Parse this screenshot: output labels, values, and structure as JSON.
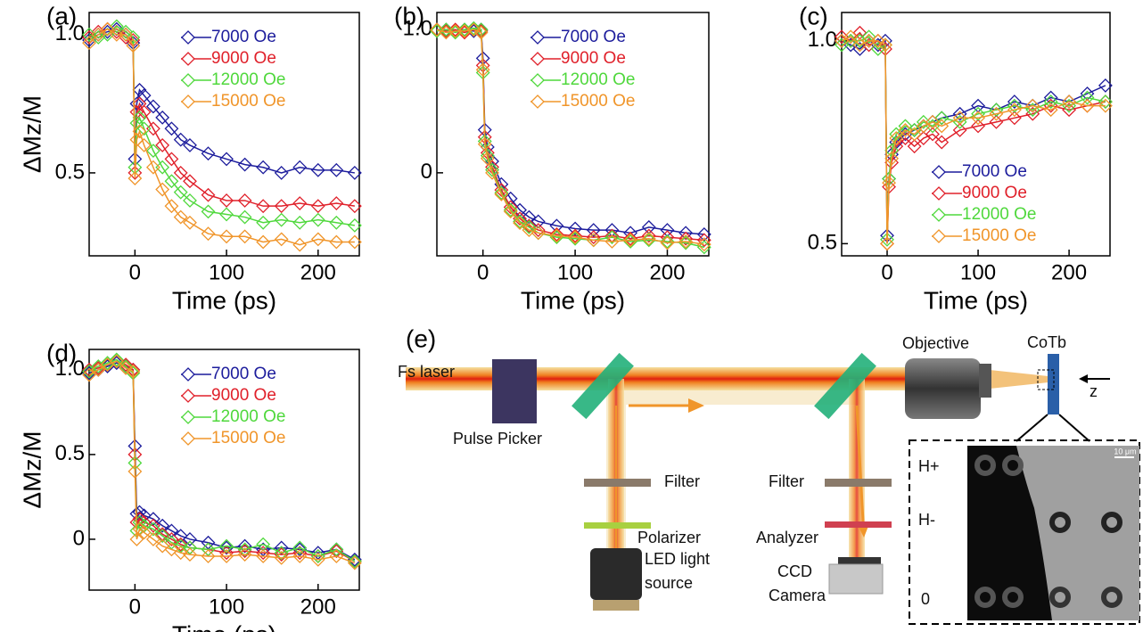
{
  "chart_data": [
    {
      "type": "line",
      "panel": "(a)",
      "xlabel": "Time (ps)",
      "ylabel": "ΔMz/M",
      "legend": "upper right",
      "x": [
        -50,
        -40,
        -30,
        -20,
        -10,
        -2,
        0,
        2,
        5,
        10,
        20,
        30,
        40,
        50,
        60,
        80,
        100,
        120,
        140,
        160,
        180,
        200,
        220,
        240
      ],
      "xlim": [
        -50,
        245
      ],
      "xticks": [
        0,
        100,
        200
      ],
      "ylim": [
        0.2,
        1.08
      ],
      "yticks": [
        0.5,
        {
          "value": 1,
          "label": "1.0"
        }
      ],
      "series": [
        {
          "name": "7000 Oe",
          "color": "#1c1c9c",
          "values": [
            0.98,
            1.0,
            1.01,
            1.02,
            1.0,
            0.97,
            0.55,
            0.75,
            0.8,
            0.78,
            0.74,
            0.7,
            0.66,
            0.62,
            0.6,
            0.57,
            0.55,
            0.53,
            0.52,
            0.5,
            0.52,
            0.51,
            0.51,
            0.5
          ]
        },
        {
          "name": "9000 Oe",
          "color": "#e0202a",
          "values": [
            0.99,
            1.01,
            1.02,
            1.01,
            0.99,
            0.98,
            0.5,
            0.72,
            0.75,
            0.72,
            0.66,
            0.6,
            0.55,
            0.5,
            0.47,
            0.42,
            0.4,
            0.4,
            0.38,
            0.38,
            0.39,
            0.38,
            0.39,
            0.38
          ]
        },
        {
          "name": "12000 Oe",
          "color": "#4fd83c",
          "values": [
            1.0,
            0.99,
            1.0,
            1.03,
            1.01,
            0.99,
            0.52,
            0.68,
            0.7,
            0.66,
            0.58,
            0.52,
            0.47,
            0.43,
            0.4,
            0.36,
            0.35,
            0.34,
            0.32,
            0.33,
            0.32,
            0.33,
            0.32,
            0.31
          ]
        },
        {
          "name": "15000 Oe",
          "color": "#f0952a",
          "values": [
            0.97,
            1.0,
            1.02,
            1.0,
            1.0,
            0.96,
            0.48,
            0.62,
            0.65,
            0.6,
            0.52,
            0.44,
            0.38,
            0.34,
            0.32,
            0.28,
            0.27,
            0.27,
            0.25,
            0.26,
            0.24,
            0.26,
            0.25,
            0.25
          ]
        }
      ]
    },
    {
      "type": "line",
      "panel": "(b)",
      "xlabel": "Time (ps)",
      "legend": "upper right",
      "x": [
        -50,
        -40,
        -30,
        -20,
        -10,
        -2,
        0,
        2,
        5,
        10,
        20,
        30,
        40,
        50,
        60,
        80,
        100,
        120,
        140,
        160,
        180,
        200,
        220,
        240
      ],
      "xlim": [
        -50,
        245
      ],
      "xticks": [
        0,
        100,
        200
      ],
      "ylim": [
        -0.58,
        1.12
      ],
      "yticks": [
        0,
        {
          "value": 1,
          "label": "1.0"
        }
      ],
      "series": [
        {
          "name": "7000 Oe",
          "color": "#1c1c9c",
          "values": [
            1.0,
            1.0,
            0.99,
            1.0,
            0.99,
            1.0,
            0.8,
            0.3,
            0.18,
            0.08,
            -0.08,
            -0.18,
            -0.26,
            -0.31,
            -0.34,
            -0.37,
            -0.39,
            -0.4,
            -0.4,
            -0.42,
            -0.38,
            -0.4,
            -0.42,
            -0.43
          ]
        },
        {
          "name": "9000 Oe",
          "color": "#e0202a",
          "values": [
            1.0,
            0.99,
            1.0,
            0.98,
            1.0,
            0.99,
            0.75,
            0.25,
            0.14,
            0.04,
            -0.12,
            -0.24,
            -0.32,
            -0.37,
            -0.4,
            -0.43,
            -0.44,
            -0.45,
            -0.44,
            -0.46,
            -0.44,
            -0.45,
            -0.46,
            -0.47
          ]
        },
        {
          "name": "12000 Oe",
          "color": "#4fd83c",
          "values": [
            0.99,
            1.0,
            0.98,
            1.0,
            1.01,
            1.0,
            0.7,
            0.22,
            0.12,
            0.02,
            -0.14,
            -0.26,
            -0.34,
            -0.38,
            -0.42,
            -0.45,
            -0.46,
            -0.47,
            -0.45,
            -0.48,
            -0.47,
            -0.48,
            -0.49,
            -0.52
          ]
        },
        {
          "name": "15000 Oe",
          "color": "#f0952a",
          "values": [
            1.0,
            0.98,
            0.99,
            0.99,
            1.0,
            0.98,
            0.72,
            0.2,
            0.1,
            0.0,
            -0.15,
            -0.27,
            -0.35,
            -0.4,
            -0.42,
            -0.44,
            -0.45,
            -0.47,
            -0.48,
            -0.47,
            -0.46,
            -0.49,
            -0.48,
            -0.5
          ]
        }
      ]
    },
    {
      "type": "line",
      "panel": "(c)",
      "xlabel": "Time (ps)",
      "legend": "lower right",
      "x": [
        -50,
        -40,
        -30,
        -20,
        -10,
        -2,
        0,
        2,
        5,
        10,
        20,
        30,
        40,
        50,
        60,
        80,
        100,
        120,
        140,
        160,
        180,
        200,
        220,
        240
      ],
      "xlim": [
        -50,
        245
      ],
      "xticks": [
        0,
        100,
        200
      ],
      "ylim": [
        0.47,
        1.07
      ],
      "yticks": [
        0.5,
        {
          "value": 1,
          "label": "1.0"
        }
      ],
      "series": [
        {
          "name": "7000 Oe",
          "color": "#1c1c9c",
          "values": [
            1.0,
            0.99,
            0.98,
            1.0,
            0.99,
            1.0,
            0.52,
            0.66,
            0.72,
            0.75,
            0.77,
            0.78,
            0.79,
            0.8,
            0.81,
            0.82,
            0.84,
            0.83,
            0.85,
            0.84,
            0.86,
            0.85,
            0.87,
            0.89
          ]
        },
        {
          "name": "9000 Oe",
          "color": "#e0202a",
          "values": [
            1.01,
            1.0,
            1.02,
            0.99,
            1.0,
            0.98,
            0.5,
            0.64,
            0.7,
            0.74,
            0.76,
            0.74,
            0.76,
            0.77,
            0.75,
            0.78,
            0.79,
            0.8,
            0.81,
            0.82,
            0.84,
            0.83,
            0.84,
            0.85
          ]
        },
        {
          "name": "12000 Oe",
          "color": "#4fd83c",
          "values": [
            0.99,
            1.0,
            1.0,
            1.01,
            0.98,
            0.99,
            0.51,
            0.66,
            0.73,
            0.77,
            0.79,
            0.78,
            0.8,
            0.79,
            0.81,
            0.8,
            0.82,
            0.83,
            0.84,
            0.83,
            0.85,
            0.84,
            0.86,
            0.85
          ]
        },
        {
          "name": "15000 Oe",
          "color": "#f0952a",
          "values": [
            1.0,
            1.01,
            0.99,
            1.0,
            1.0,
            0.99,
            0.5,
            0.65,
            0.71,
            0.76,
            0.78,
            0.77,
            0.79,
            0.8,
            0.79,
            0.81,
            0.81,
            0.82,
            0.83,
            0.84,
            0.83,
            0.85,
            0.84,
            0.84
          ]
        }
      ]
    },
    {
      "type": "line",
      "panel": "(d)",
      "xlabel": "Time (ps)",
      "ylabel": "ΔMz/M",
      "legend": "upper right",
      "x": [
        -50,
        -40,
        -30,
        -20,
        -10,
        -2,
        0,
        2,
        5,
        10,
        20,
        30,
        40,
        50,
        60,
        80,
        100,
        120,
        140,
        160,
        180,
        200,
        220,
        240
      ],
      "xlim": [
        -50,
        245
      ],
      "xticks": [
        0,
        100,
        200
      ],
      "ylim": [
        -0.3,
        1.12
      ],
      "yticks": [
        0,
        0.5,
        {
          "value": 1,
          "label": "1.0"
        }
      ],
      "series": [
        {
          "name": "7000 Oe",
          "color": "#1c1c9c",
          "values": [
            0.98,
            1.0,
            1.02,
            1.04,
            1.02,
            1.0,
            0.55,
            0.15,
            0.16,
            0.14,
            0.12,
            0.08,
            0.05,
            0.02,
            0.0,
            -0.02,
            -0.05,
            -0.04,
            -0.06,
            -0.05,
            -0.06,
            -0.08,
            -0.06,
            -0.12
          ]
        },
        {
          "name": "9000 Oe",
          "color": "#e0202a",
          "values": [
            1.0,
            1.01,
            1.03,
            1.05,
            1.03,
            1.0,
            0.5,
            0.1,
            0.12,
            0.1,
            0.08,
            0.03,
            0.0,
            -0.03,
            -0.05,
            -0.06,
            -0.08,
            -0.07,
            -0.08,
            -0.09,
            -0.08,
            -0.1,
            -0.07,
            -0.13
          ]
        },
        {
          "name": "12000 Oe",
          "color": "#4fd83c",
          "values": [
            0.99,
            1.02,
            1.04,
            1.06,
            1.02,
            0.98,
            0.45,
            0.05,
            0.1,
            0.08,
            0.06,
            0.02,
            -0.02,
            -0.04,
            -0.05,
            -0.06,
            -0.04,
            -0.06,
            -0.03,
            -0.08,
            -0.05,
            -0.1,
            -0.06,
            -0.13
          ]
        },
        {
          "name": "15000 Oe",
          "color": "#f0952a",
          "values": [
            0.97,
            1.0,
            1.03,
            1.05,
            1.01,
            0.99,
            0.4,
            0.0,
            0.06,
            0.04,
            0.0,
            -0.04,
            -0.06,
            -0.08,
            -0.09,
            -0.1,
            -0.1,
            -0.09,
            -0.1,
            -0.11,
            -0.1,
            -0.12,
            -0.1,
            -0.14
          ]
        }
      ]
    }
  ],
  "diagram": {
    "panel": "(e)",
    "laser": "Fs laser",
    "pulse_picker": "Pulse Picker",
    "filter_1": "Filter",
    "polarizer": "Polarizer",
    "led": [
      "LED light",
      "source"
    ],
    "filter_2": "Filter",
    "analyzer": "Analyzer",
    "ccd": [
      "CCD",
      "Camera"
    ],
    "objective": "Objective",
    "sample": "CoTb",
    "axis": "z",
    "rows": [
      "H+",
      "H-",
      "0"
    ],
    "scale": "10 μm"
  }
}
